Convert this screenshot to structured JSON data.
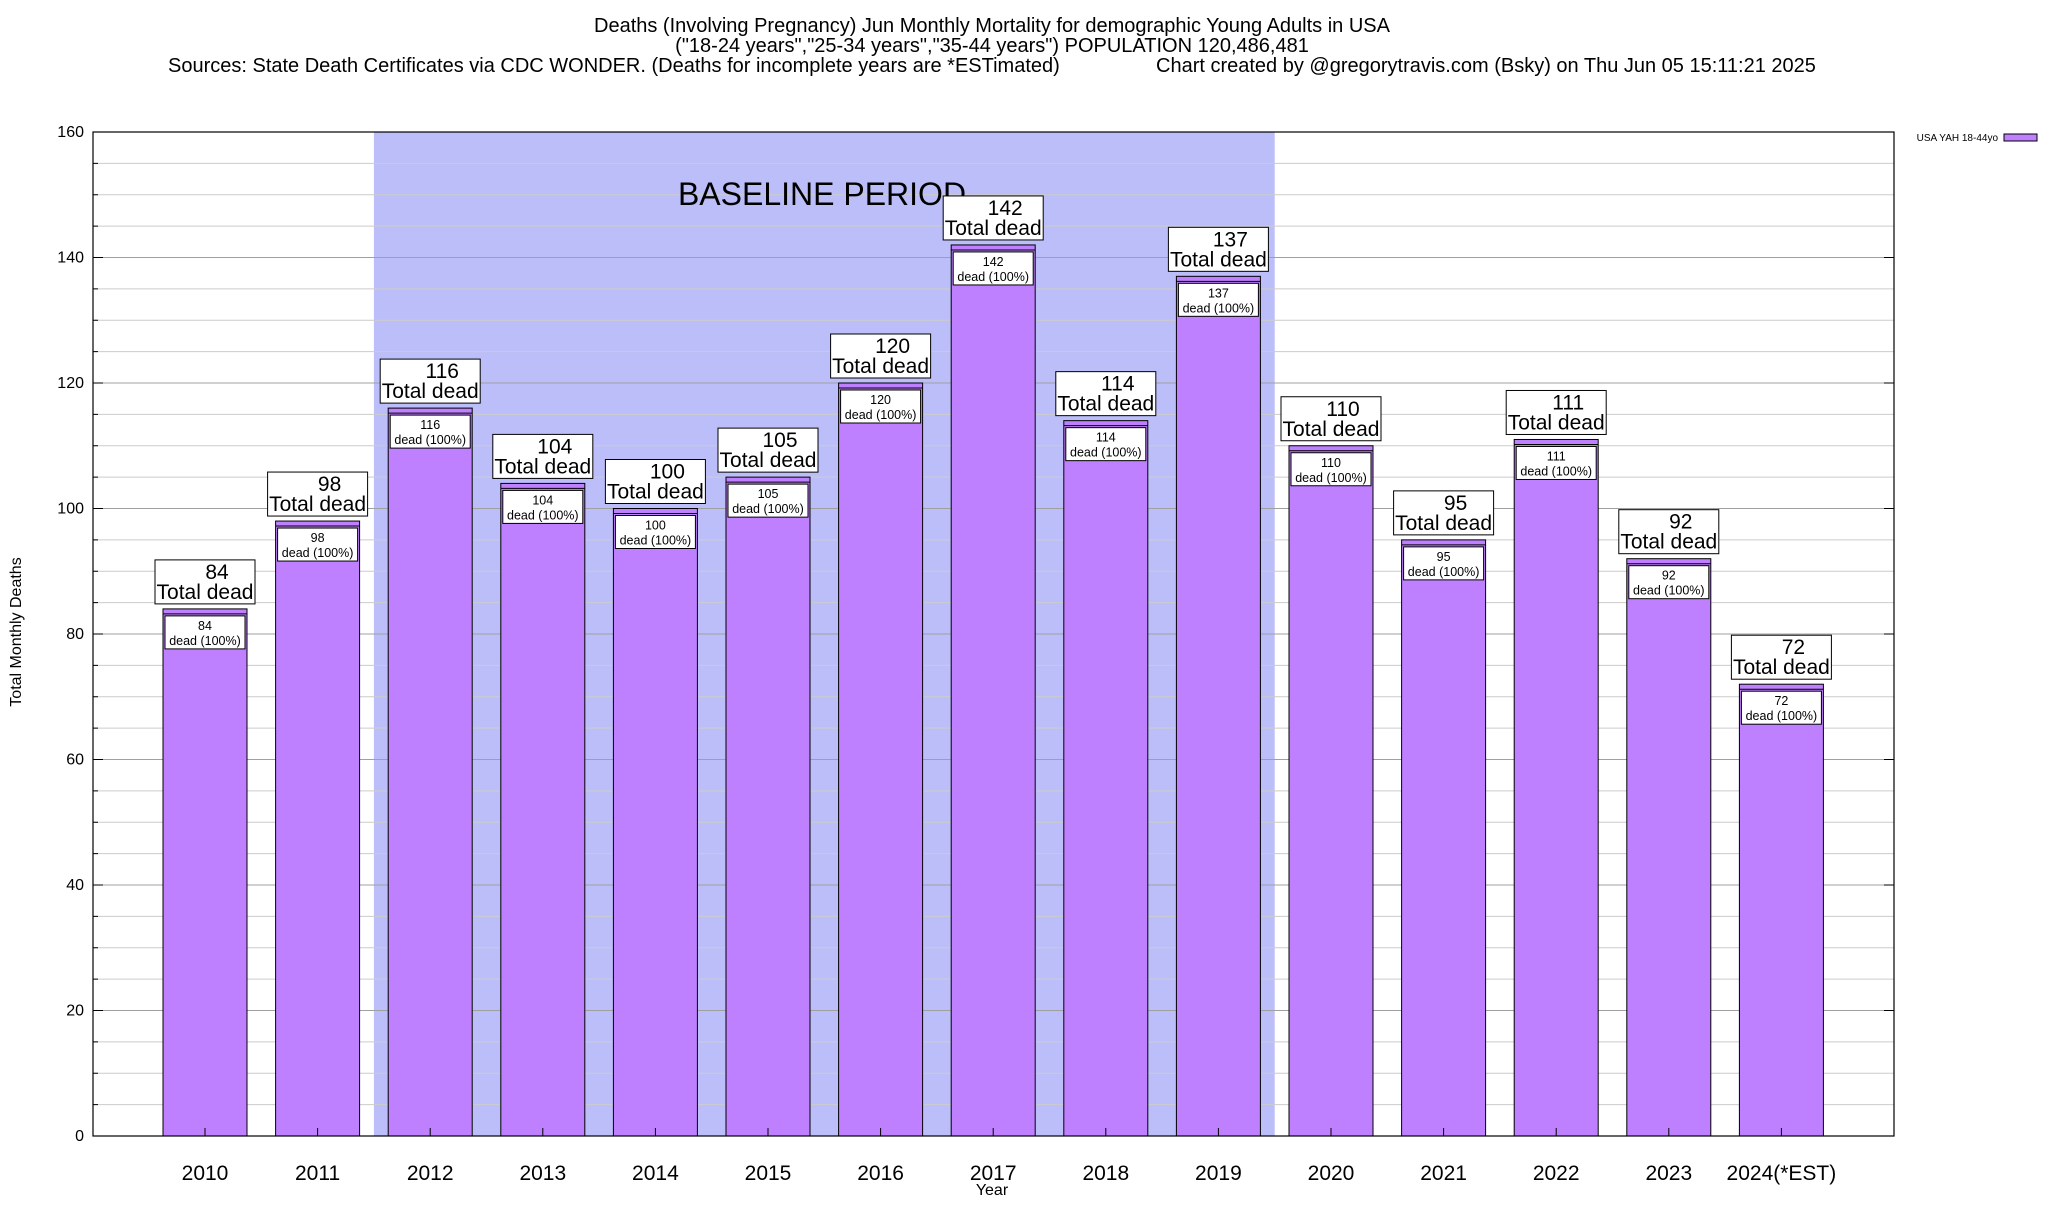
{
  "chart_data": {
    "type": "bar",
    "title_lines": [
      "Deaths (Involving Pregnancy) Jun Monthly Mortality for demographic Young Adults in USA",
      "(\"18-24 years\",\"25-34 years\",\"35-44 years\") POPULATION 120,486,481"
    ],
    "sources": "Sources: State Death Certificates via CDC WONDER. (Deaths for incomplete years are *ESTimated)",
    "credit": "Chart created by @gregorytravis.com (Bsky) on Thu Jun 05 15:11:21 2025",
    "xlabel": "Year",
    "ylabel": "Total Monthly Deaths",
    "ylim": [
      0,
      160
    ],
    "yticks": [
      0,
      20,
      40,
      60,
      80,
      100,
      120,
      140,
      160
    ],
    "grid": true,
    "categories": [
      "2010",
      "2011",
      "2012",
      "2013",
      "2014",
      "2015",
      "2016",
      "2017",
      "2018",
      "2019",
      "2020",
      "2021",
      "2022",
      "2023",
      "2024(*EST)"
    ],
    "series": [
      {
        "name": "USA YAH 18-44yo",
        "color": "#bf80ff",
        "values": [
          84,
          98,
          116,
          104,
          100,
          105,
          120,
          142,
          114,
          137,
          110,
          95,
          111,
          92,
          72
        ]
      }
    ],
    "annotation_label": "Total dead",
    "inner_label": "dead (100%)",
    "baseline": {
      "label": "BASELINE PERIOD",
      "from": "2012",
      "to": "2019",
      "color": "#bbbef9"
    },
    "legend_position": "top-right"
  }
}
